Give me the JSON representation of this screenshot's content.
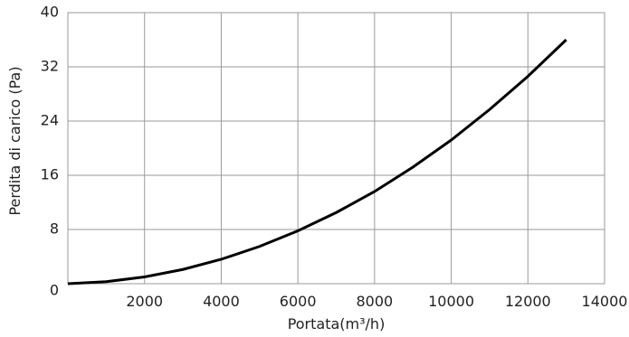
{
  "chart_data": {
    "type": "line",
    "xlabel": "Portata(m³/h)",
    "ylabel": "Perdita di carico (Pa)",
    "xlim": [
      0,
      14000
    ],
    "ylim": [
      0,
      40
    ],
    "x_ticks": [
      2000,
      4000,
      6000,
      8000,
      10000,
      12000,
      14000
    ],
    "y_ticks": [
      0,
      8,
      16,
      24,
      32,
      40
    ],
    "grid": true,
    "series": [
      {
        "values": [
          {
            "x": 0,
            "y": 0
          },
          {
            "x": 1000,
            "y": 0.3
          },
          {
            "x": 2000,
            "y": 1.0
          },
          {
            "x": 3000,
            "y": 2.1
          },
          {
            "x": 4000,
            "y": 3.6
          },
          {
            "x": 5000,
            "y": 5.5
          },
          {
            "x": 6000,
            "y": 7.8
          },
          {
            "x": 7000,
            "y": 10.5
          },
          {
            "x": 8000,
            "y": 13.6
          },
          {
            "x": 9000,
            "y": 17.2
          },
          {
            "x": 10000,
            "y": 21.2
          },
          {
            "x": 11000,
            "y": 25.7
          },
          {
            "x": 12000,
            "y": 30.6
          },
          {
            "x": 13000,
            "y": 36.0
          }
        ]
      }
    ]
  }
}
